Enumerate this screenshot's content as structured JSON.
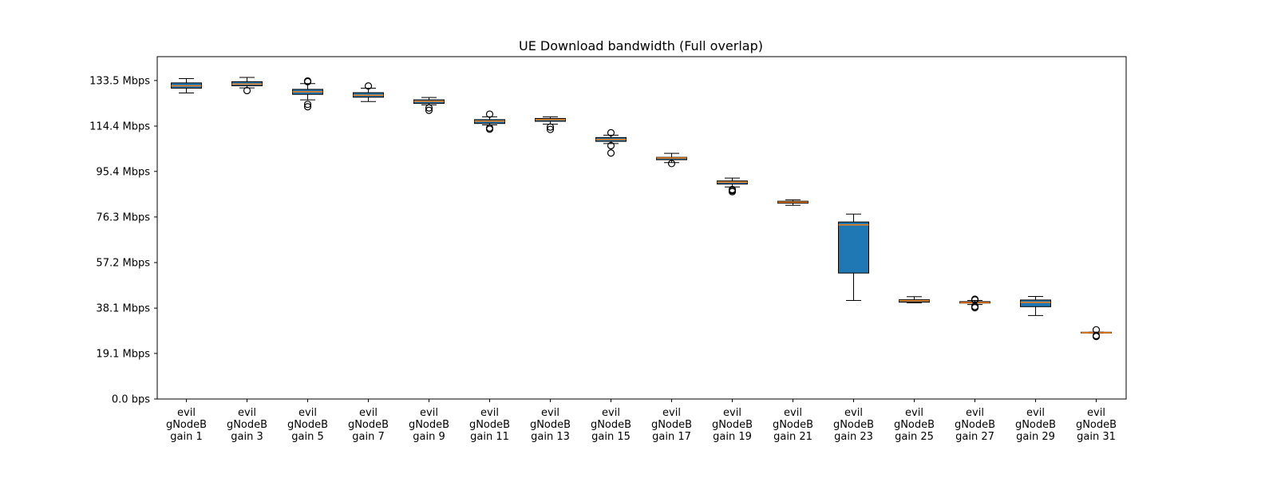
{
  "chart_data": {
    "type": "box",
    "title": "UE Download bandwidth (Full overlap)",
    "xlabel": "",
    "ylabel": "",
    "ylim": [
      0,
      143.5
    ],
    "y_ticks": [
      0,
      19.1,
      38.1,
      57.2,
      76.3,
      95.4,
      114.4,
      133.5
    ],
    "y_tick_labels": [
      "0.0 bps",
      "19.1 Mbps",
      "38.1 Mbps",
      "57.2 Mbps",
      "76.3 Mbps",
      "95.4 Mbps",
      "114.4 Mbps",
      "133.5 Mbps"
    ],
    "grid": false,
    "colors": {
      "box_fill": "#1f77b4",
      "median": "#ff7f0e",
      "line": "#000000"
    },
    "categories": [
      [
        "evil",
        "gNodeB",
        "gain 1"
      ],
      [
        "evil",
        "gNodeB",
        "gain 3"
      ],
      [
        "evil",
        "gNodeB",
        "gain 5"
      ],
      [
        "evil",
        "gNodeB",
        "gain 7"
      ],
      [
        "evil",
        "gNodeB",
        "gain 9"
      ],
      [
        "evil",
        "gNodeB",
        "gain 11"
      ],
      [
        "evil",
        "gNodeB",
        "gain 13"
      ],
      [
        "evil",
        "gNodeB",
        "gain 15"
      ],
      [
        "evil",
        "gNodeB",
        "gain 17"
      ],
      [
        "evil",
        "gNodeB",
        "gain 19"
      ],
      [
        "evil",
        "gNodeB",
        "gain 21"
      ],
      [
        "evil",
        "gNodeB",
        "gain 23"
      ],
      [
        "evil",
        "gNodeB",
        "gain 25"
      ],
      [
        "evil",
        "gNodeB",
        "gain 27"
      ],
      [
        "evil",
        "gNodeB",
        "gain 29"
      ],
      [
        "evil",
        "gNodeB",
        "gain 31"
      ]
    ],
    "boxes": [
      {
        "whislo": 128.3,
        "q1": 130.3,
        "med": 131.3,
        "q3": 132.5,
        "whishi": 134.3,
        "fliers": []
      },
      {
        "whislo": 130.4,
        "q1": 131.3,
        "med": 132.0,
        "q3": 133.0,
        "whishi": 134.8,
        "fliers": [
          129.3
        ]
      },
      {
        "whislo": 125.4,
        "q1": 127.7,
        "med": 128.8,
        "q3": 129.8,
        "whishi": 132.2,
        "fliers": [
          133.3,
          133.0,
          123.5,
          122.5
        ]
      },
      {
        "whislo": 124.7,
        "q1": 126.5,
        "med": 127.3,
        "q3": 128.4,
        "whishi": 130.3,
        "fliers": [
          131.2
        ]
      },
      {
        "whislo": 123.3,
        "q1": 123.9,
        "med": 124.8,
        "q3": 125.4,
        "whishi": 126.4,
        "fliers": [
          122.0,
          121.0
        ]
      },
      {
        "whislo": 114.9,
        "q1": 115.5,
        "med": 116.5,
        "q3": 117.1,
        "whishi": 118.3,
        "fliers": [
          119.4,
          113.6,
          113.1
        ]
      },
      {
        "whislo": 115.2,
        "q1": 116.4,
        "med": 117.1,
        "q3": 117.6,
        "whishi": 118.3,
        "fliers": [
          114.0,
          113.0
        ]
      },
      {
        "whislo": 107.1,
        "q1": 108.0,
        "med": 108.8,
        "q3": 109.6,
        "whishi": 110.6,
        "fliers": [
          111.6,
          106.2,
          103.1
        ]
      },
      {
        "whislo": 99.1,
        "q1": 100.3,
        "med": 101.0,
        "q3": 101.3,
        "whishi": 103.0,
        "fliers": [
          98.7
        ]
      },
      {
        "whislo": 88.9,
        "q1": 90.1,
        "med": 90.9,
        "q3": 91.4,
        "whishi": 92.6,
        "fliers": [
          87.8,
          87.4,
          86.9
        ]
      },
      {
        "whislo": 81.2,
        "q1": 82.1,
        "med": 82.5,
        "q3": 82.9,
        "whishi": 83.5,
        "fliers": []
      },
      {
        "whislo": 41.3,
        "q1": 52.8,
        "med": 73.0,
        "q3": 74.2,
        "whishi": 77.5,
        "fliers": []
      },
      {
        "whislo": 40.3,
        "q1": 40.6,
        "med": 41.2,
        "q3": 41.6,
        "whishi": 42.9,
        "fliers": []
      },
      {
        "whislo": 39.6,
        "q1": 40.2,
        "med": 40.4,
        "q3": 40.8,
        "whishi": 41.3,
        "fliers": [
          41.8,
          41.5,
          38.8,
          38.3
        ]
      },
      {
        "whislo": 35.0,
        "q1": 38.7,
        "med": 40.5,
        "q3": 41.5,
        "whishi": 43.0,
        "fliers": []
      },
      {
        "whislo": 27.7,
        "q1": 27.7,
        "med": 27.8,
        "q3": 28.0,
        "whishi": 28.0,
        "fliers": [
          29.0,
          26.6,
          26.2
        ]
      }
    ]
  }
}
